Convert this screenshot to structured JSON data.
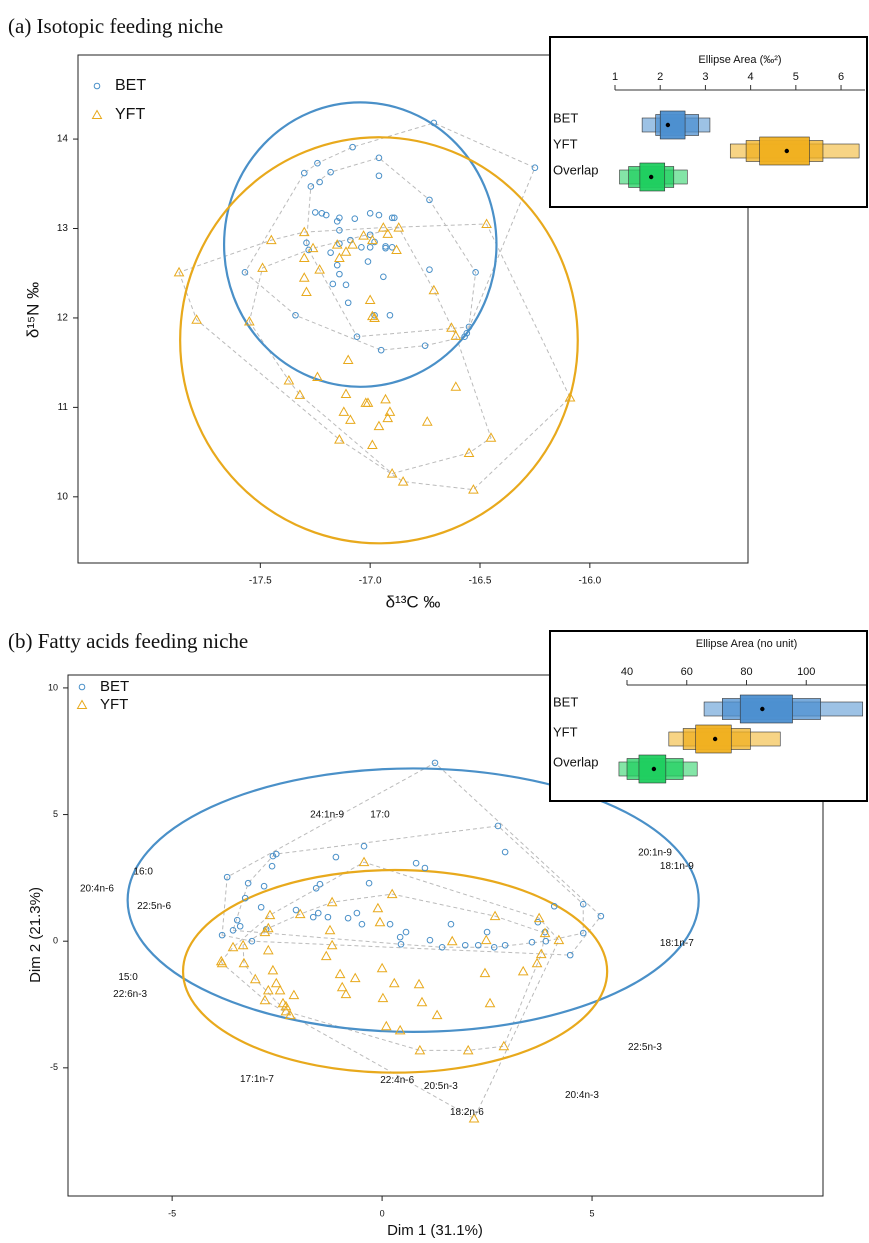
{
  "chart_data": [
    {
      "type": "scatter",
      "title": "(a) Isotopic feeding niche",
      "xlabel": "δ¹³C ‰",
      "ylabel": "δ¹⁵N ‰",
      "xlim": [
        -18.33,
        -15.28
      ],
      "ylim": [
        9.26,
        14.94
      ],
      "xticks": [
        -17.5,
        {
          "value": -17,
          "label": "-17.0"
        },
        -16.5,
        {
          "value": -16,
          "label": "-16.0"
        }
      ],
      "yticks": [
        10,
        11,
        12,
        13,
        14
      ],
      "legend": "upper left",
      "series": [
        {
          "name": "BET",
          "color": "#4a90c8",
          "marker": "circle",
          "x": [
            -16.71,
            -17.08,
            -17.24,
            -16.96,
            -17.3,
            -17.18,
            -16.96,
            -17.23,
            -17.27,
            -16.73,
            -17.25,
            -17.22,
            -17.2,
            -17.14,
            -17.15,
            -17.07,
            -17.0,
            -16.96,
            -16.9,
            -17.14,
            -17.29,
            -17.28,
            -17.0,
            -16.89,
            -17.14,
            -17.09,
            -16.93,
            -17.04,
            -17.0,
            -16.9,
            -16.98,
            -17.18,
            -17.15,
            -16.93,
            -17.57,
            -17.14,
            -17.01,
            -16.94,
            -16.73,
            -16.52,
            -17.17,
            -17.11,
            -17.34,
            -16.98,
            -17.1,
            -16.91,
            -17.06,
            -16.95,
            -16.75,
            -16.57,
            -16.25,
            -16.55,
            -16.56
          ],
          "y": [
            14.18,
            13.91,
            13.73,
            13.79,
            13.62,
            13.63,
            13.59,
            13.52,
            13.47,
            13.32,
            13.18,
            13.17,
            13.15,
            13.12,
            13.08,
            13.11,
            13.17,
            13.15,
            13.12,
            12.98,
            12.84,
            12.76,
            12.93,
            13.12,
            12.83,
            12.87,
            12.8,
            12.79,
            12.79,
            12.79,
            12.85,
            12.73,
            12.59,
            12.78,
            12.51,
            12.49,
            12.63,
            12.46,
            12.54,
            12.51,
            12.38,
            12.37,
            12.03,
            12.03,
            12.17,
            12.03,
            11.79,
            11.64,
            11.69,
            11.79,
            13.68,
            11.9,
            11.83
          ],
          "ellipse": {
            "center": [
              -17.045,
              12.82
            ],
            "radii": [
              0.62,
              1.59
            ]
          }
        },
        {
          "name": "YFT",
          "color": "#e8a91c",
          "marker": "triangle",
          "x": [
            -17.87,
            -17.79,
            -17.55,
            -17.45,
            -17.49,
            -17.3,
            -17.3,
            -17.3,
            -17.29,
            -17.23,
            -17.15,
            -17.14,
            -17.08,
            -17.03,
            -16.99,
            -16.94,
            -16.92,
            -16.87,
            -16.88,
            -17.11,
            -17.26,
            -17.0,
            -16.99,
            -16.98,
            -16.71,
            -16.63,
            -16.61,
            -17.1,
            -17.24,
            -17.37,
            -17.32,
            -17.11,
            -17.02,
            -17.01,
            -16.93,
            -16.91,
            -17.12,
            -16.92,
            -16.96,
            -17.09,
            -16.74,
            -16.61,
            -17.14,
            -16.99,
            -16.9,
            -16.85,
            -16.55,
            -16.53,
            -16.45,
            -16.09,
            -16.47
          ],
          "y": [
            12.51,
            11.98,
            11.96,
            12.87,
            12.56,
            12.96,
            12.67,
            12.45,
            12.29,
            12.54,
            12.82,
            12.67,
            12.82,
            12.92,
            12.87,
            13.01,
            12.94,
            13.01,
            12.76,
            12.74,
            12.78,
            12.2,
            12.02,
            12.0,
            12.31,
            11.89,
            11.8,
            11.53,
            11.34,
            11.3,
            11.14,
            11.15,
            11.05,
            11.05,
            11.09,
            10.95,
            10.95,
            10.88,
            10.79,
            10.86,
            10.84,
            11.23,
            10.64,
            10.58,
            10.26,
            10.17,
            10.49,
            10.08,
            10.66,
            11.11,
            13.05
          ],
          "ellipse": {
            "center": [
              -16.96,
              11.75
            ],
            "radii": [
              0.905,
              2.27
            ]
          }
        }
      ]
    },
    {
      "type": "interval",
      "title": "Ellipse Area (‰²)",
      "xlim": [
        1,
        6.53
      ],
      "xticks": [
        1,
        2,
        3,
        4,
        5,
        6
      ],
      "categories": [
        "BET",
        "YFT",
        "Overlap"
      ],
      "colors": [
        "#4c8fd0",
        "#f0b020",
        "#1fcf5f"
      ],
      "modes": [
        2.17,
        4.8,
        1.8
      ],
      "intervals": [
        [
          [
            1.6,
            3.1
          ],
          [
            1.9,
            2.85
          ],
          [
            2.0,
            2.55
          ]
        ],
        [
          [
            3.55,
            6.4
          ],
          [
            3.9,
            5.6
          ],
          [
            4.2,
            5.3
          ]
        ],
        [
          [
            1.1,
            2.6
          ],
          [
            1.3,
            2.3
          ],
          [
            1.55,
            2.1
          ]
        ]
      ]
    },
    {
      "type": "scatter",
      "title": "(b) Fatty acids feeding niche",
      "xlabel": "Dim 1 (31.1%)",
      "ylabel": "Dim 2 (21.3%)",
      "xlim": [
        -7.48,
        10.5
      ],
      "ylim": [
        -10.06,
        10.51
      ],
      "xticks": [
        -5,
        0,
        5
      ],
      "yticks": [
        -5,
        0,
        5,
        10
      ],
      "legend": "upper left",
      "series": [
        {
          "name": "BET",
          "color": "#4a90c8",
          "marker": "circle",
          "x": [
            1.26,
            2.76,
            2.93,
            -0.43,
            -3.69,
            -2.6,
            -2.62,
            -2.52,
            -1.1,
            0.81,
            1.02,
            -3.19,
            -2.81,
            -0.31,
            -1.48,
            -1.57,
            -2.88,
            -3.26,
            -2.05,
            -1.64,
            -1.52,
            -1.29,
            -0.6,
            -0.48,
            0.57,
            -0.81,
            0.19,
            1.64,
            2.5,
            3.71,
            3.88,
            3.9,
            2.93,
            0.43,
            1.14,
            0.45,
            4.1,
            4.79,
            5.21,
            4.48,
            4.79,
            3.57,
            2.67,
            2.29,
            1.98,
            1.43,
            -3.1,
            -3.45,
            -3.38,
            -3.55,
            -2.76,
            -3.81
          ],
          "y": [
            7.04,
            4.55,
            3.52,
            3.75,
            2.53,
            3.36,
            2.96,
            3.44,
            3.32,
            3.08,
            2.89,
            2.29,
            2.17,
            2.29,
            2.25,
            2.09,
            1.34,
            1.7,
            1.23,
            0.95,
            1.11,
            0.95,
            1.11,
            0.67,
            0.36,
            0.91,
            0.67,
            0.67,
            0.36,
            0.75,
            0.36,
            0,
            -0.16,
            0.16,
            0.04,
            -0.12,
            1.38,
            1.46,
            0.99,
            -0.55,
            0.32,
            -0.04,
            -0.24,
            -0.16,
            -0.16,
            -0.24,
            0,
            0.83,
            0.59,
            0.43,
            0.47,
            0.24
          ],
          "ellipse": {
            "center": [
              0.74,
              1.62
            ],
            "radii": [
              6.8,
              5.2
            ]
          }
        },
        {
          "name": "YFT",
          "color": "#e8a91c",
          "marker": "triangle",
          "x": [
            2.19,
            -0.43,
            0.24,
            -0.1,
            -0.05,
            -1.19,
            -1.24,
            -1.95,
            -2.67,
            -2.71,
            -2.79,
            -3.31,
            -3.55,
            -3.83,
            -3.81,
            -3.29,
            -2.71,
            -2.6,
            -2.43,
            -2.1,
            -2.52,
            -3.02,
            -2.71,
            -2.36,
            -2.29,
            -2.19,
            -2.79,
            -2.29,
            -1.19,
            -1.33,
            -1.0,
            -0.95,
            -0.64,
            -0.86,
            0,
            0.02,
            0.29,
            0.1,
            0.43,
            0.88,
            0.95,
            1.31,
            1.67,
            2.48,
            2.45,
            2.57,
            2.9,
            2.69,
            3.36,
            3.74,
            3.88,
            4.21,
            3.69,
            3.79,
            0.9,
            2.05
          ],
          "y": [
            -7.0,
            3.12,
            1.86,
            1.3,
            0.75,
            1.54,
            0.43,
            1.07,
            1.03,
            0.51,
            0.36,
            -0.16,
            -0.24,
            -0.79,
            -0.87,
            -0.87,
            -0.36,
            -1.15,
            -1.94,
            -2.13,
            -1.66,
            -1.5,
            -1.94,
            -2.45,
            -2.77,
            -2.92,
            -2.33,
            -2.57,
            -0.16,
            -0.59,
            -1.3,
            -1.82,
            -1.46,
            -2.09,
            -1.07,
            -2.25,
            -1.66,
            -3.36,
            -3.52,
            -1.7,
            -2.41,
            -2.92,
            0,
            0.04,
            -1.26,
            -2.45,
            -4.15,
            0.99,
            -1.19,
            0.91,
            0.32,
            0.04,
            -0.87,
            -0.51,
            -4.31,
            -4.31
          ],
          "ellipse": {
            "center": [
              0.31,
              -1.19
            ],
            "radii": [
              5.05,
              4.0
            ]
          }
        }
      ],
      "annotations": [
        {
          "text": "24:1n-9",
          "x": -1.31,
          "y": 4.98
        },
        {
          "text": "17:0",
          "x": -0.05,
          "y": 4.98
        },
        {
          "text": "20:1n-9",
          "x": 6.5,
          "y": 3.48
        },
        {
          "text": "18:1n-9",
          "x": 7.02,
          "y": 2.96
        },
        {
          "text": "16:0",
          "x": -5.69,
          "y": 2.73
        },
        {
          "text": "20:4n-6",
          "x": -6.79,
          "y": 2.06
        },
        {
          "text": "22:5n-6",
          "x": -5.43,
          "y": 1.38
        },
        {
          "text": "18:1n-7",
          "x": 7.02,
          "y": -0.08
        },
        {
          "text": "15:0",
          "x": -6.05,
          "y": -1.42
        },
        {
          "text": "22:6n-3",
          "x": -6.0,
          "y": -2.09
        },
        {
          "text": "22:5n-3",
          "x": 6.26,
          "y": -4.19
        },
        {
          "text": "17:1n-7",
          "x": -2.98,
          "y": -5.45
        },
        {
          "text": "22:4n-6",
          "x": 0.36,
          "y": -5.49
        },
        {
          "text": "20:5n-3",
          "x": 1.4,
          "y": -5.73
        },
        {
          "text": "20:4n-3",
          "x": 4.76,
          "y": -6.09
        },
        {
          "text": "18:2n-6",
          "x": 2.02,
          "y": -6.76
        }
      ]
    },
    {
      "type": "interval",
      "title": "Ellipse Area (no unit)",
      "xlim": [
        40,
        120
      ],
      "xticks": [
        40,
        60,
        80,
        100
      ],
      "categories": [
        "BET",
        "YFT",
        "Overlap"
      ],
      "colors": [
        "#4c8fd0",
        "#f0b020",
        "#1fcf5f"
      ],
      "modes": [
        85.3,
        69.5,
        49
      ],
      "intervals": [
        [
          [
            65.8,
            118.9
          ],
          [
            71.9,
            104.8
          ],
          [
            77.9,
            95.4
          ]
        ],
        [
          [
            54,
            91.3
          ],
          [
            58.8,
            81.3
          ],
          [
            63,
            74.9
          ]
        ],
        [
          [
            37.3,
            63.5
          ],
          [
            40,
            58.8
          ],
          [
            44,
            53
          ]
        ]
      ]
    }
  ]
}
